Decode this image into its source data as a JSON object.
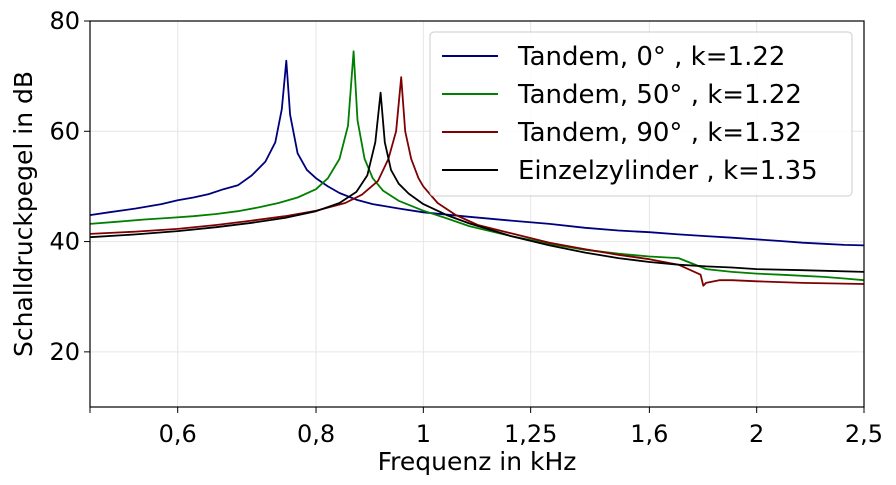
{
  "chart_data": {
    "type": "line",
    "title": "",
    "xlabel": "Frequenz in kHz",
    "ylabel": "Schalldruckpegel in dB",
    "xscale": "log",
    "xlim": [
      0.5,
      2.5
    ],
    "ylim": [
      10,
      80
    ],
    "grid": true,
    "legend_position": "top-right",
    "xticks": [
      {
        "value": 0.5,
        "label": ""
      },
      {
        "value": 0.6,
        "label": "0,6"
      },
      {
        "value": 0.8,
        "label": "0,8"
      },
      {
        "value": 1.0,
        "label": "1"
      },
      {
        "value": 1.25,
        "label": "1,25"
      },
      {
        "value": 1.6,
        "label": "1,6"
      },
      {
        "value": 2.0,
        "label": "2"
      },
      {
        "value": 2.5,
        "label": "2,5"
      }
    ],
    "yticks": [
      {
        "value": 20,
        "label": "20"
      },
      {
        "value": 40,
        "label": "40"
      },
      {
        "value": 60,
        "label": "60"
      },
      {
        "value": 80,
        "label": "80"
      }
    ],
    "series": [
      {
        "name": "Tandem, 0° , k=1.22",
        "color": "#00007f",
        "points": [
          [
            0.5,
            44.8
          ],
          [
            0.52,
            45.3
          ],
          [
            0.55,
            46.0
          ],
          [
            0.58,
            46.8
          ],
          [
            0.6,
            47.5
          ],
          [
            0.62,
            48.0
          ],
          [
            0.64,
            48.6
          ],
          [
            0.66,
            49.5
          ],
          [
            0.68,
            50.2
          ],
          [
            0.7,
            52.0
          ],
          [
            0.72,
            54.5
          ],
          [
            0.735,
            58.0
          ],
          [
            0.745,
            64.0
          ],
          [
            0.752,
            72.8
          ],
          [
            0.758,
            63.0
          ],
          [
            0.77,
            56.0
          ],
          [
            0.785,
            53.0
          ],
          [
            0.8,
            51.5
          ],
          [
            0.82,
            50.0
          ],
          [
            0.84,
            48.8
          ],
          [
            0.87,
            47.6
          ],
          [
            0.9,
            46.8
          ],
          [
            0.95,
            46.0
          ],
          [
            1.0,
            45.3
          ],
          [
            1.1,
            44.5
          ],
          [
            1.2,
            43.8
          ],
          [
            1.3,
            43.2
          ],
          [
            1.4,
            42.5
          ],
          [
            1.5,
            42.0
          ],
          [
            1.6,
            41.7
          ],
          [
            1.7,
            41.3
          ],
          [
            1.8,
            41.0
          ],
          [
            1.9,
            40.7
          ],
          [
            2.0,
            40.4
          ],
          [
            2.1,
            40.1
          ],
          [
            2.2,
            39.8
          ],
          [
            2.3,
            39.6
          ],
          [
            2.4,
            39.4
          ],
          [
            2.5,
            39.3
          ]
        ]
      },
      {
        "name": "Tandem, 50° , k=1.22",
        "color": "#007f00",
        "points": [
          [
            0.5,
            43.2
          ],
          [
            0.53,
            43.6
          ],
          [
            0.56,
            44.0
          ],
          [
            0.59,
            44.3
          ],
          [
            0.62,
            44.6
          ],
          [
            0.65,
            45.0
          ],
          [
            0.68,
            45.5
          ],
          [
            0.71,
            46.2
          ],
          [
            0.74,
            47.0
          ],
          [
            0.77,
            48.0
          ],
          [
            0.8,
            49.5
          ],
          [
            0.82,
            51.5
          ],
          [
            0.84,
            55.0
          ],
          [
            0.855,
            61.0
          ],
          [
            0.865,
            74.5
          ],
          [
            0.872,
            62.0
          ],
          [
            0.885,
            55.0
          ],
          [
            0.9,
            51.5
          ],
          [
            0.92,
            49.2
          ],
          [
            0.95,
            47.4
          ],
          [
            1.0,
            45.6
          ],
          [
            1.05,
            44.2
          ],
          [
            1.1,
            42.8
          ],
          [
            1.2,
            41.0
          ],
          [
            1.3,
            39.6
          ],
          [
            1.4,
            38.5
          ],
          [
            1.5,
            37.8
          ],
          [
            1.6,
            37.3
          ],
          [
            1.7,
            37.0
          ],
          [
            1.75,
            36.0
          ],
          [
            1.8,
            35.0
          ],
          [
            1.9,
            34.5
          ],
          [
            2.0,
            34.2
          ],
          [
            2.1,
            34.0
          ],
          [
            2.2,
            33.8
          ],
          [
            2.3,
            33.6
          ],
          [
            2.4,
            33.3
          ],
          [
            2.5,
            33.0
          ]
        ]
      },
      {
        "name": "Tandem, 90° , k=1.32",
        "color": "#7f0000",
        "points": [
          [
            0.5,
            41.4
          ],
          [
            0.55,
            41.8
          ],
          [
            0.6,
            42.3
          ],
          [
            0.65,
            43.0
          ],
          [
            0.7,
            43.8
          ],
          [
            0.75,
            44.6
          ],
          [
            0.8,
            45.6
          ],
          [
            0.85,
            47.0
          ],
          [
            0.88,
            48.5
          ],
          [
            0.91,
            51.0
          ],
          [
            0.93,
            55.0
          ],
          [
            0.945,
            60.0
          ],
          [
            0.955,
            69.8
          ],
          [
            0.963,
            60.0
          ],
          [
            0.975,
            55.0
          ],
          [
            0.99,
            51.5
          ],
          [
            1.0,
            50.0
          ],
          [
            1.03,
            47.0
          ],
          [
            1.07,
            44.8
          ],
          [
            1.12,
            43.0
          ],
          [
            1.2,
            41.5
          ],
          [
            1.3,
            39.8
          ],
          [
            1.4,
            38.6
          ],
          [
            1.5,
            37.6
          ],
          [
            1.6,
            36.8
          ],
          [
            1.7,
            35.8
          ],
          [
            1.78,
            34.0
          ],
          [
            1.79,
            32.0
          ],
          [
            1.8,
            32.5
          ],
          [
            1.85,
            33.0
          ],
          [
            1.9,
            33.0
          ],
          [
            2.0,
            32.8
          ],
          [
            2.2,
            32.5
          ],
          [
            2.5,
            32.3
          ]
        ]
      },
      {
        "name": "Einzelzylinder , k=1.35",
        "color": "#000000",
        "points": [
          [
            0.5,
            40.8
          ],
          [
            0.55,
            41.3
          ],
          [
            0.6,
            41.9
          ],
          [
            0.65,
            42.6
          ],
          [
            0.7,
            43.4
          ],
          [
            0.75,
            44.3
          ],
          [
            0.8,
            45.5
          ],
          [
            0.84,
            47.0
          ],
          [
            0.87,
            49.0
          ],
          [
            0.89,
            52.0
          ],
          [
            0.905,
            58.0
          ],
          [
            0.915,
            67.0
          ],
          [
            0.923,
            58.0
          ],
          [
            0.935,
            53.0
          ],
          [
            0.95,
            50.5
          ],
          [
            0.97,
            48.7
          ],
          [
            1.0,
            46.8
          ],
          [
            1.05,
            44.8
          ],
          [
            1.1,
            43.3
          ],
          [
            1.2,
            41.0
          ],
          [
            1.3,
            39.3
          ],
          [
            1.4,
            38.0
          ],
          [
            1.5,
            37.0
          ],
          [
            1.6,
            36.3
          ],
          [
            1.7,
            35.8
          ],
          [
            1.8,
            35.5
          ],
          [
            1.9,
            35.3
          ],
          [
            2.0,
            35.0
          ],
          [
            2.2,
            34.8
          ],
          [
            2.5,
            34.5
          ]
        ]
      }
    ]
  }
}
